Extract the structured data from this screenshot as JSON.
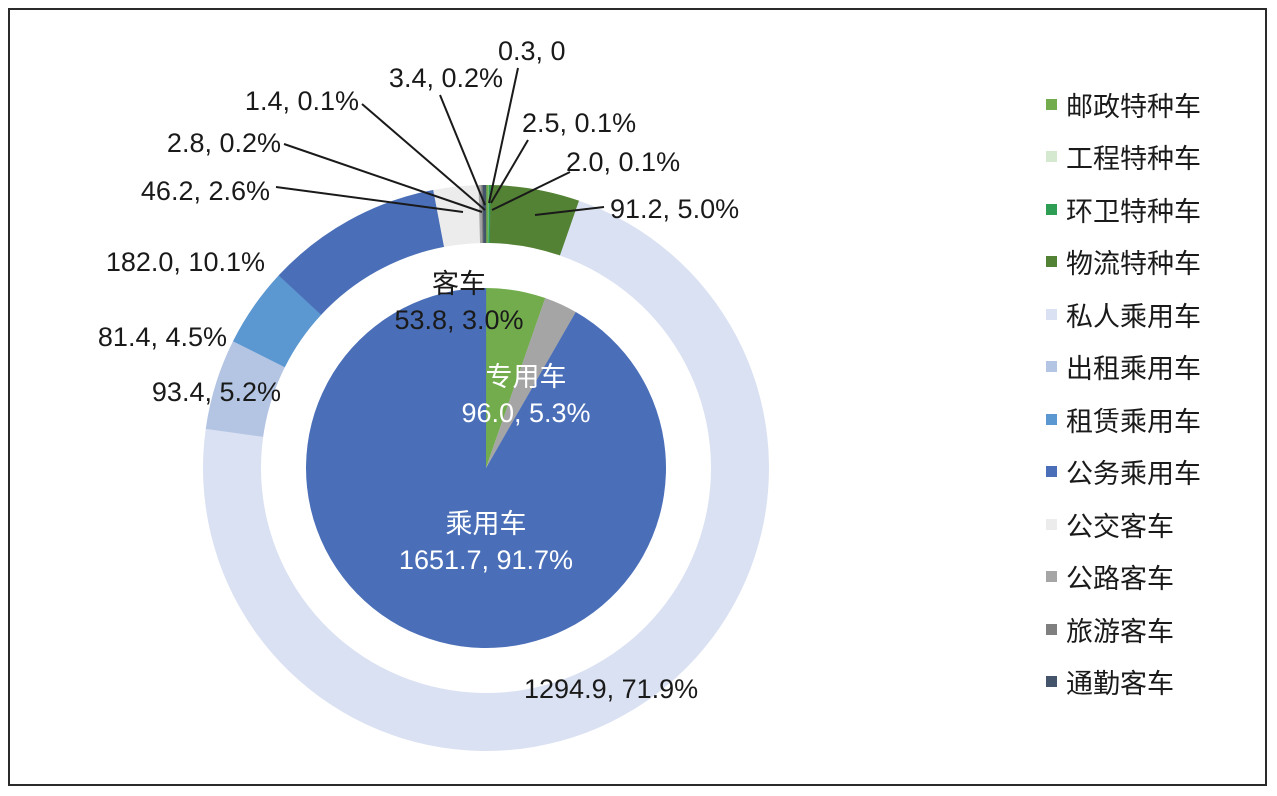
{
  "chart_data": {
    "type": "donut",
    "inner": {
      "categories": [
        "专用车",
        "客车",
        "乘用车"
      ],
      "values": [
        96.0,
        53.8,
        1651.7
      ],
      "labels": [
        "96.0, 5.3%",
        "53.8, 3.0%",
        "1651.7, 91.7%"
      ],
      "colors": [
        "#72ac4d",
        "#a5a5a5",
        "#4a6fb8"
      ]
    },
    "outer": {
      "categories": [
        "邮政特种车",
        "工程特种车",
        "环卫特种车",
        "物流特种车",
        "私人乘用车",
        "出租乘用车",
        "租赁乘用车",
        "公务乘用车",
        "公交客车",
        "公路客车",
        "旅游客车",
        "通勤客车"
      ],
      "values": [
        2.5,
        0.3,
        2.0,
        91.2,
        1294.9,
        93.4,
        81.4,
        182.0,
        46.2,
        2.8,
        1.4,
        3.4
      ],
      "labels": [
        "2.5, 0.1%",
        "0.3, 0",
        "2.0, 0.1%",
        "91.2, 5.0%",
        "1294.9, 71.9%",
        "93.4, 5.2%",
        "81.4, 4.5%",
        "182.0, 10.1%",
        "46.2, 2.6%",
        "2.8, 0.2%",
        "1.4, 0.1%",
        "3.4, 0.2%"
      ],
      "colors": [
        "#72ac4d",
        "#d5e8d0",
        "#2e9e55",
        "#548235",
        "#dae1f2",
        "#b4c5e4",
        "#5b97d0",
        "#4a6fb8",
        "#ececec",
        "#a5a5a5",
        "#7f7f7f",
        "#44546a"
      ]
    },
    "legend": [
      "邮政特种车",
      "工程特种车",
      "环卫特种车",
      "物流特种车",
      "私人乘用车",
      "出租乘用车",
      "租赁乘用车",
      "公务乘用车",
      "公交客车",
      "公路客车",
      "旅游客车",
      "通勤客车"
    ],
    "legend_colors": [
      "#72ac4d",
      "#d5e8d0",
      "#2e9e55",
      "#548235",
      "#dae1f2",
      "#b4c5e4",
      "#5b97d0",
      "#4a6fb8",
      "#ececec",
      "#a5a5a5",
      "#7f7f7f",
      "#44546a"
    ],
    "legend_position": "right"
  }
}
